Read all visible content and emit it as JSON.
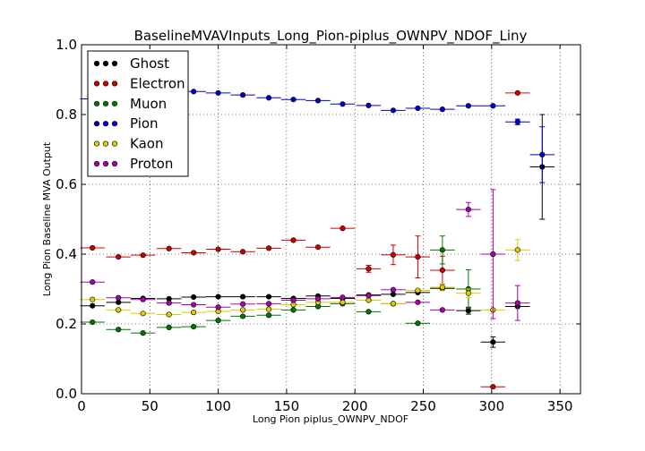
{
  "chart_data": {
    "type": "scatter",
    "title": "BaselineMVAVInputs_Long_Pion-piplus_OWNPV_NDOF_Liny",
    "xlabel": "Long Pion piplus_OWNPV_NDOF",
    "ylabel": "Long Pion Baseline MVA Output",
    "xlim": [
      0,
      365
    ],
    "ylim": [
      0,
      1.0
    ],
    "xticks": [
      0,
      50,
      100,
      150,
      200,
      250,
      300,
      350
    ],
    "yticks": [
      0.0,
      0.2,
      0.4,
      0.6,
      0.8,
      1.0
    ],
    "ytick_labels": [
      "0.0",
      "0.2",
      "0.4",
      "0.6",
      "0.8",
      "1.0"
    ],
    "grid": true,
    "legend_position": "top-left",
    "bin_half_width": 9,
    "series": [
      {
        "name": "Ghost",
        "color": "#000000",
        "points": [
          {
            "x": 8,
            "y": 0.252
          },
          {
            "x": 27,
            "y": 0.262
          },
          {
            "x": 45,
            "y": 0.273
          },
          {
            "x": 64,
            "y": 0.272
          },
          {
            "x": 82,
            "y": 0.277
          },
          {
            "x": 100,
            "y": 0.278
          },
          {
            "x": 118,
            "y": 0.278
          },
          {
            "x": 137,
            "y": 0.278
          },
          {
            "x": 155,
            "y": 0.273
          },
          {
            "x": 173,
            "y": 0.28
          },
          {
            "x": 191,
            "y": 0.273
          },
          {
            "x": 210,
            "y": 0.283
          },
          {
            "x": 228,
            "y": 0.285
          },
          {
            "x": 246,
            "y": 0.29
          },
          {
            "x": 264,
            "y": 0.302
          },
          {
            "x": 283,
            "y": 0.238,
            "yerr": 0.01
          },
          {
            "x": 301,
            "y": 0.148,
            "yerr": 0.015
          },
          {
            "x": 319,
            "y": 0.25
          },
          {
            "x": 337,
            "y": 0.65,
            "yerr": 0.15
          }
        ]
      },
      {
        "name": "Electron",
        "color": "#cc0000",
        "points": [
          {
            "x": 8,
            "y": 0.418
          },
          {
            "x": 27,
            "y": 0.392
          },
          {
            "x": 45,
            "y": 0.397
          },
          {
            "x": 64,
            "y": 0.416
          },
          {
            "x": 82,
            "y": 0.404
          },
          {
            "x": 100,
            "y": 0.414
          },
          {
            "x": 118,
            "y": 0.407
          },
          {
            "x": 137,
            "y": 0.417
          },
          {
            "x": 155,
            "y": 0.44
          },
          {
            "x": 173,
            "y": 0.42
          },
          {
            "x": 191,
            "y": 0.474
          },
          {
            "x": 210,
            "y": 0.358,
            "yerr": 0.01
          },
          {
            "x": 228,
            "y": 0.398,
            "yerr": 0.028
          },
          {
            "x": 246,
            "y": 0.392,
            "yerr": 0.06
          },
          {
            "x": 264,
            "y": 0.354,
            "yerr": 0.04
          },
          {
            "x": 301,
            "y": 0.02
          },
          {
            "x": 319,
            "y": 0.862
          }
        ]
      },
      {
        "name": "Muon",
        "color": "#007700",
        "points": [
          {
            "x": 8,
            "y": 0.205
          },
          {
            "x": 27,
            "y": 0.184
          },
          {
            "x": 45,
            "y": 0.174
          },
          {
            "x": 64,
            "y": 0.19
          },
          {
            "x": 82,
            "y": 0.192
          },
          {
            "x": 100,
            "y": 0.21
          },
          {
            "x": 118,
            "y": 0.222
          },
          {
            "x": 137,
            "y": 0.225
          },
          {
            "x": 155,
            "y": 0.24
          },
          {
            "x": 173,
            "y": 0.25
          },
          {
            "x": 191,
            "y": 0.258
          },
          {
            "x": 210,
            "y": 0.235
          },
          {
            "x": 228,
            "y": 0.258
          },
          {
            "x": 246,
            "y": 0.202
          },
          {
            "x": 264,
            "y": 0.412,
            "yerr": 0.04
          },
          {
            "x": 283,
            "y": 0.3,
            "yerr": 0.055
          }
        ]
      },
      {
        "name": "Pion",
        "color": "#0000cc",
        "points": [
          {
            "x": 8,
            "y": 0.845
          },
          {
            "x": 27,
            "y": 0.86
          },
          {
            "x": 45,
            "y": 0.862
          },
          {
            "x": 64,
            "y": 0.862
          },
          {
            "x": 82,
            "y": 0.866
          },
          {
            "x": 100,
            "y": 0.862
          },
          {
            "x": 118,
            "y": 0.856
          },
          {
            "x": 137,
            "y": 0.848
          },
          {
            "x": 155,
            "y": 0.843
          },
          {
            "x": 173,
            "y": 0.84
          },
          {
            "x": 191,
            "y": 0.83
          },
          {
            "x": 210,
            "y": 0.826
          },
          {
            "x": 228,
            "y": 0.812
          },
          {
            "x": 246,
            "y": 0.818
          },
          {
            "x": 264,
            "y": 0.815
          },
          {
            "x": 283,
            "y": 0.825
          },
          {
            "x": 301,
            "y": 0.825
          },
          {
            "x": 319,
            "y": 0.779,
            "yerr": 0.008
          },
          {
            "x": 337,
            "y": 0.685,
            "yerr": 0.08
          }
        ]
      },
      {
        "name": "Kaon",
        "color": "#ddcc00",
        "points": [
          {
            "x": 8,
            "y": 0.27
          },
          {
            "x": 27,
            "y": 0.24
          },
          {
            "x": 45,
            "y": 0.23
          },
          {
            "x": 64,
            "y": 0.227
          },
          {
            "x": 82,
            "y": 0.233
          },
          {
            "x": 100,
            "y": 0.236
          },
          {
            "x": 118,
            "y": 0.24
          },
          {
            "x": 137,
            "y": 0.242
          },
          {
            "x": 155,
            "y": 0.255
          },
          {
            "x": 173,
            "y": 0.262
          },
          {
            "x": 191,
            "y": 0.262
          },
          {
            "x": 210,
            "y": 0.268
          },
          {
            "x": 228,
            "y": 0.258
          },
          {
            "x": 246,
            "y": 0.296
          },
          {
            "x": 264,
            "y": 0.305,
            "yerr": 0.01
          },
          {
            "x": 283,
            "y": 0.288,
            "yerr": 0.012
          },
          {
            "x": 301,
            "y": 0.24
          },
          {
            "x": 319,
            "y": 0.412,
            "yerr": 0.03
          }
        ]
      },
      {
        "name": "Proton",
        "color": "#aa00aa",
        "points": [
          {
            "x": 8,
            "y": 0.32
          },
          {
            "x": 27,
            "y": 0.275
          },
          {
            "x": 45,
            "y": 0.27
          },
          {
            "x": 64,
            "y": 0.26
          },
          {
            "x": 82,
            "y": 0.255
          },
          {
            "x": 100,
            "y": 0.248
          },
          {
            "x": 118,
            "y": 0.257
          },
          {
            "x": 137,
            "y": 0.258
          },
          {
            "x": 155,
            "y": 0.268
          },
          {
            "x": 173,
            "y": 0.272
          },
          {
            "x": 191,
            "y": 0.276
          },
          {
            "x": 210,
            "y": 0.281
          },
          {
            "x": 228,
            "y": 0.298
          },
          {
            "x": 246,
            "y": 0.262
          },
          {
            "x": 264,
            "y": 0.24
          },
          {
            "x": 283,
            "y": 0.528,
            "yerr": 0.02
          },
          {
            "x": 301,
            "y": 0.4,
            "yerr": 0.185
          },
          {
            "x": 319,
            "y": 0.26,
            "yerr": 0.05
          }
        ]
      }
    ]
  }
}
